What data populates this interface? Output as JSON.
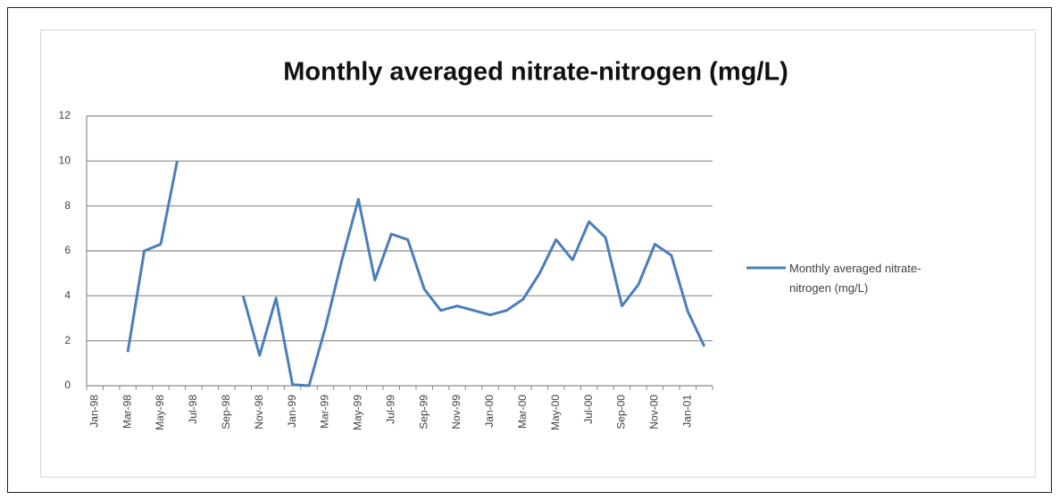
{
  "chart_data": {
    "type": "line",
    "title": "Monthly averaged nitrate-nitrogen (mg/L)",
    "categories": [
      "Jan-98",
      null,
      "Mar-98",
      null,
      "May-98",
      null,
      "Jul-98",
      null,
      "Sep-98",
      null,
      "Nov-98",
      null,
      "Jan-99",
      null,
      "Mar-99",
      null,
      "May-99",
      null,
      "Jul-99",
      null,
      "Sep-99",
      null,
      "Nov-99",
      null,
      "Jan-00",
      null,
      "Mar-00",
      null,
      "May-00",
      null,
      "Jul-00",
      null,
      "Sep-00",
      null,
      "Nov-00",
      null,
      "Jan-01",
      null
    ],
    "series": [
      {
        "name": "Monthly averaged nitrate-nitrogen (mg/L)",
        "color": "#4a7ebb",
        "values": [
          null,
          null,
          1.5,
          6.0,
          6.3,
          10.0,
          null,
          null,
          null,
          4.0,
          1.35,
          3.9,
          0.05,
          0.0,
          2.6,
          5.6,
          8.3,
          4.7,
          6.75,
          6.5,
          4.3,
          3.35,
          3.55,
          3.35,
          3.15,
          3.35,
          3.85,
          5.0,
          6.5,
          5.6,
          7.3,
          6.6,
          3.55,
          4.5,
          6.3,
          5.8,
          3.3,
          1.75
        ]
      }
    ],
    "ylim": [
      0,
      12
    ],
    "yticks": [
      0,
      2,
      4,
      6,
      8,
      10,
      12
    ],
    "grid": true,
    "legend": "right"
  }
}
